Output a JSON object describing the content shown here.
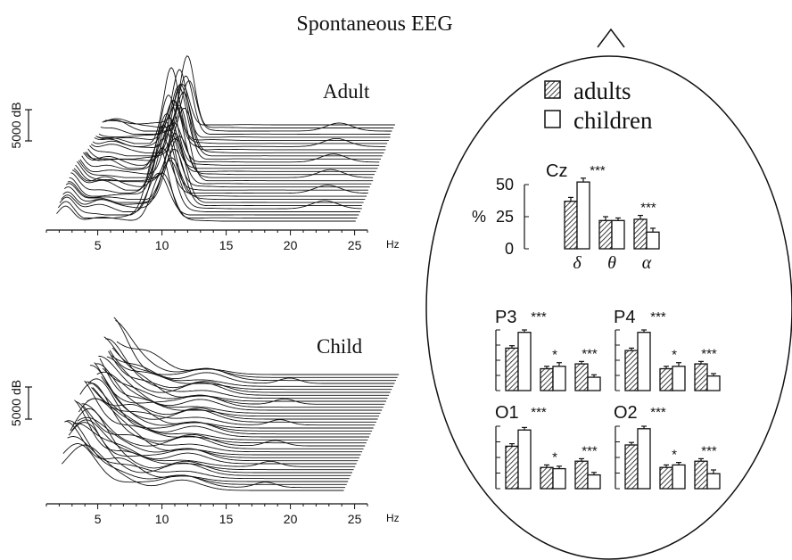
{
  "title": "Spontaneous EEG",
  "legend": {
    "adults_label": "adults",
    "children_label": "children",
    "adults_pattern": "hatched",
    "children_pattern": "open"
  },
  "colors": {
    "ink": "#111111",
    "background": "#ffffff"
  },
  "chart_data": [
    {
      "type": "line",
      "panel_label": "Adult",
      "style": "stacked spectra waterfall",
      "x_unit": "Hz",
      "x_ticks": [
        5,
        10,
        15,
        20,
        25
      ],
      "xlim": [
        1,
        26
      ],
      "scale_bar_label": "5000 dB",
      "traces": 32,
      "peaks_hz": [
        10.5
      ],
      "late_bump_hz": 22.5
    },
    {
      "type": "line",
      "panel_label": "Child",
      "style": "stacked spectra waterfall",
      "x_unit": "Hz",
      "x_ticks": [
        5,
        10,
        15,
        20,
        25
      ],
      "xlim": [
        1,
        26
      ],
      "scale_bar_label": "5000 dB",
      "traces": 40,
      "peaks_hz": [
        4.5,
        12
      ]
    },
    {
      "type": "bar",
      "panel_label": "Cz",
      "ylabel": "%",
      "yticks": [
        0,
        25,
        50
      ],
      "ylim": [
        0,
        50
      ],
      "categories": [
        "δ",
        "θ",
        "α"
      ],
      "series": [
        {
          "name": "adults",
          "values": [
            37,
            22,
            23
          ],
          "errors": [
            3,
            3,
            3
          ]
        },
        {
          "name": "children",
          "values": [
            52,
            22,
            13
          ],
          "errors": [
            3,
            2,
            3
          ]
        }
      ],
      "significance": [
        "***",
        "",
        "***"
      ]
    },
    {
      "type": "bar",
      "panel_label": "P3",
      "ylim": [
        0,
        50
      ],
      "categories": [
        "δ",
        "θ",
        "α"
      ],
      "series": [
        {
          "name": "adults",
          "values": [
            35,
            18,
            22
          ],
          "errors": [
            2,
            2,
            2
          ]
        },
        {
          "name": "children",
          "values": [
            48,
            20,
            11
          ],
          "errors": [
            2,
            3,
            2
          ]
        }
      ],
      "significance": [
        "***",
        "*",
        "***"
      ]
    },
    {
      "type": "bar",
      "panel_label": "P4",
      "ylim": [
        0,
        50
      ],
      "categories": [
        "δ",
        "θ",
        "α"
      ],
      "series": [
        {
          "name": "adults",
          "values": [
            33,
            18,
            22
          ],
          "errors": [
            2,
            2,
            2
          ]
        },
        {
          "name": "children",
          "values": [
            48,
            20,
            12
          ],
          "errors": [
            2,
            3,
            2
          ]
        }
      ],
      "significance": [
        "***",
        "*",
        "***"
      ]
    },
    {
      "type": "bar",
      "panel_label": "O1",
      "ylim": [
        0,
        50
      ],
      "categories": [
        "δ",
        "θ",
        "α"
      ],
      "series": [
        {
          "name": "adults",
          "values": [
            34,
            17,
            22
          ],
          "errors": [
            2,
            2,
            2
          ]
        },
        {
          "name": "children",
          "values": [
            47,
            16,
            11
          ],
          "errors": [
            2,
            2,
            2
          ]
        }
      ],
      "significance": [
        "***",
        "*",
        "***"
      ]
    },
    {
      "type": "bar",
      "panel_label": "O2",
      "ylim": [
        0,
        50
      ],
      "categories": [
        "δ",
        "θ",
        "α"
      ],
      "series": [
        {
          "name": "adults",
          "values": [
            35,
            17,
            22
          ],
          "errors": [
            2,
            2,
            2
          ]
        },
        {
          "name": "children",
          "values": [
            48,
            19,
            12
          ],
          "errors": [
            2,
            2,
            3
          ]
        }
      ],
      "significance": [
        "***",
        "*",
        "***"
      ]
    }
  ]
}
